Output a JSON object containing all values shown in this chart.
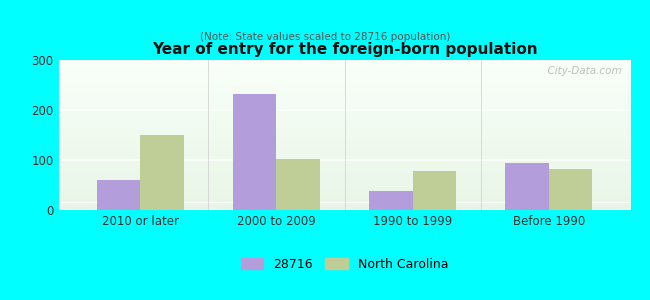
{
  "title": "Year of entry for the foreign-born population",
  "subtitle": "(Note: State values scaled to 28716 population)",
  "categories": [
    "2010 or later",
    "2000 to 2009",
    "1990 to 1999",
    "Before 1990"
  ],
  "values_28716": [
    60,
    232,
    38,
    95
  ],
  "values_nc": [
    150,
    103,
    78,
    82
  ],
  "color_28716": "#b39ddb",
  "color_nc": "#bece96",
  "ylim": [
    0,
    300
  ],
  "yticks": [
    0,
    100,
    200,
    300
  ],
  "background_color": "#00ffff",
  "grad_top": "#e8f5e6",
  "grad_bottom": "#f8fff8",
  "legend_labels": [
    "28716",
    "North Carolina"
  ],
  "bar_width": 0.32,
  "watermark": "  City-Data.com"
}
